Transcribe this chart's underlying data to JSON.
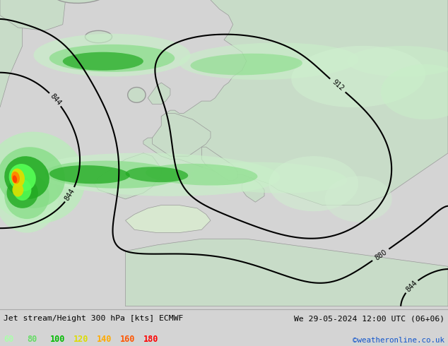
{
  "title_left": "Jet stream/Height 300 hPa [kts] ECMWF",
  "title_right": "We 29-05-2024 12:00 UTC (06+06)",
  "copyright": "©weatheronline.co.uk",
  "legend_values": [
    "60",
    "80",
    "100",
    "120",
    "140",
    "160",
    "180"
  ],
  "legend_colors": [
    "#aaffaa",
    "#66dd66",
    "#00bb00",
    "#dddd00",
    "#ffaa00",
    "#ff5500",
    "#ff0000"
  ],
  "bg_color": "#d4d4d4",
  "ocean_color": "#f0f0f0",
  "land_color": "#c8dcc8",
  "coast_color": "#999999",
  "contour_color": "#000000",
  "figsize": [
    6.34,
    4.9
  ],
  "dpi": 100,
  "contour_levels": [
    844,
    880,
    912
  ],
  "contour_labels": {
    "844": "844",
    "880": "880",
    "912": "912"
  }
}
